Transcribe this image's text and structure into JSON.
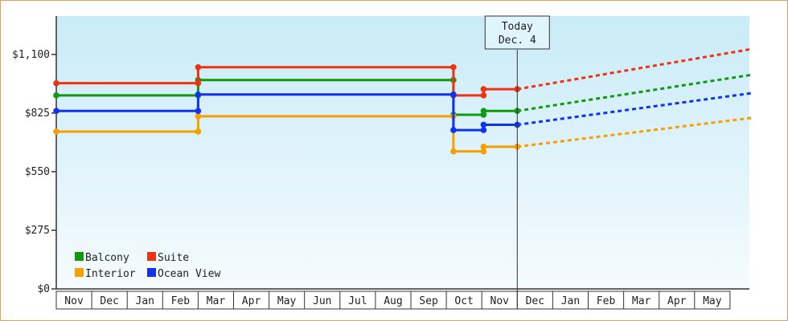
{
  "chart_data": {
    "type": "line",
    "title": "",
    "xlabel": "",
    "ylabel": "",
    "ylim": [
      0,
      1280
    ],
    "y_ticks": [
      0,
      275,
      550,
      825,
      1100
    ],
    "y_tick_labels": [
      "$0",
      "$275",
      "$550",
      "$825",
      "$1,100"
    ],
    "x_months": [
      "Nov",
      "Dec",
      "Jan",
      "Feb",
      "Mar",
      "Apr",
      "May",
      "Jun",
      "Jul",
      "Aug",
      "Sep",
      "Oct",
      "Nov",
      "Dec",
      "Jan",
      "Feb",
      "Mar",
      "Apr",
      "May"
    ],
    "today_label": [
      "Today",
      "Dec. 4"
    ],
    "today_month_index": 13,
    "legend": {
      "position": "bottom-left"
    },
    "series": [
      {
        "name": "Balcony",
        "color": "#119911",
        "history": [
          [
            0,
            908
          ],
          [
            4,
            908
          ],
          [
            4,
            980
          ],
          [
            11.2,
            980
          ],
          [
            11.2,
            817
          ],
          [
            12.05,
            817
          ],
          [
            12.05,
            835
          ],
          [
            13,
            835
          ]
        ],
        "forecast": [
          [
            13,
            835
          ],
          [
            19.6,
            1004
          ]
        ]
      },
      {
        "name": "Suite",
        "color": "#ee3311",
        "history": [
          [
            0,
            965
          ],
          [
            4,
            965
          ],
          [
            4,
            1040
          ],
          [
            11.2,
            1040
          ],
          [
            11.2,
            908
          ],
          [
            12.05,
            908
          ],
          [
            12.05,
            937
          ],
          [
            13,
            937
          ]
        ],
        "forecast": [
          [
            13,
            937
          ],
          [
            19.6,
            1125
          ]
        ]
      },
      {
        "name": "Interior",
        "color": "#f5a000",
        "history": [
          [
            0,
            738
          ],
          [
            4,
            738
          ],
          [
            4,
            810
          ],
          [
            11.2,
            810
          ],
          [
            11.2,
            645
          ],
          [
            12.05,
            645
          ],
          [
            12.05,
            667
          ],
          [
            13,
            667
          ]
        ],
        "forecast": [
          [
            13,
            667
          ],
          [
            19.6,
            802
          ]
        ]
      },
      {
        "name": "Ocean View",
        "color": "#1133ee",
        "history": [
          [
            0,
            835
          ],
          [
            4,
            835
          ],
          [
            4,
            912
          ],
          [
            11.2,
            912
          ],
          [
            11.2,
            745
          ],
          [
            12.05,
            745
          ],
          [
            12.05,
            770
          ],
          [
            13,
            770
          ]
        ],
        "forecast": [
          [
            13,
            770
          ],
          [
            19.6,
            918
          ]
        ]
      }
    ]
  }
}
